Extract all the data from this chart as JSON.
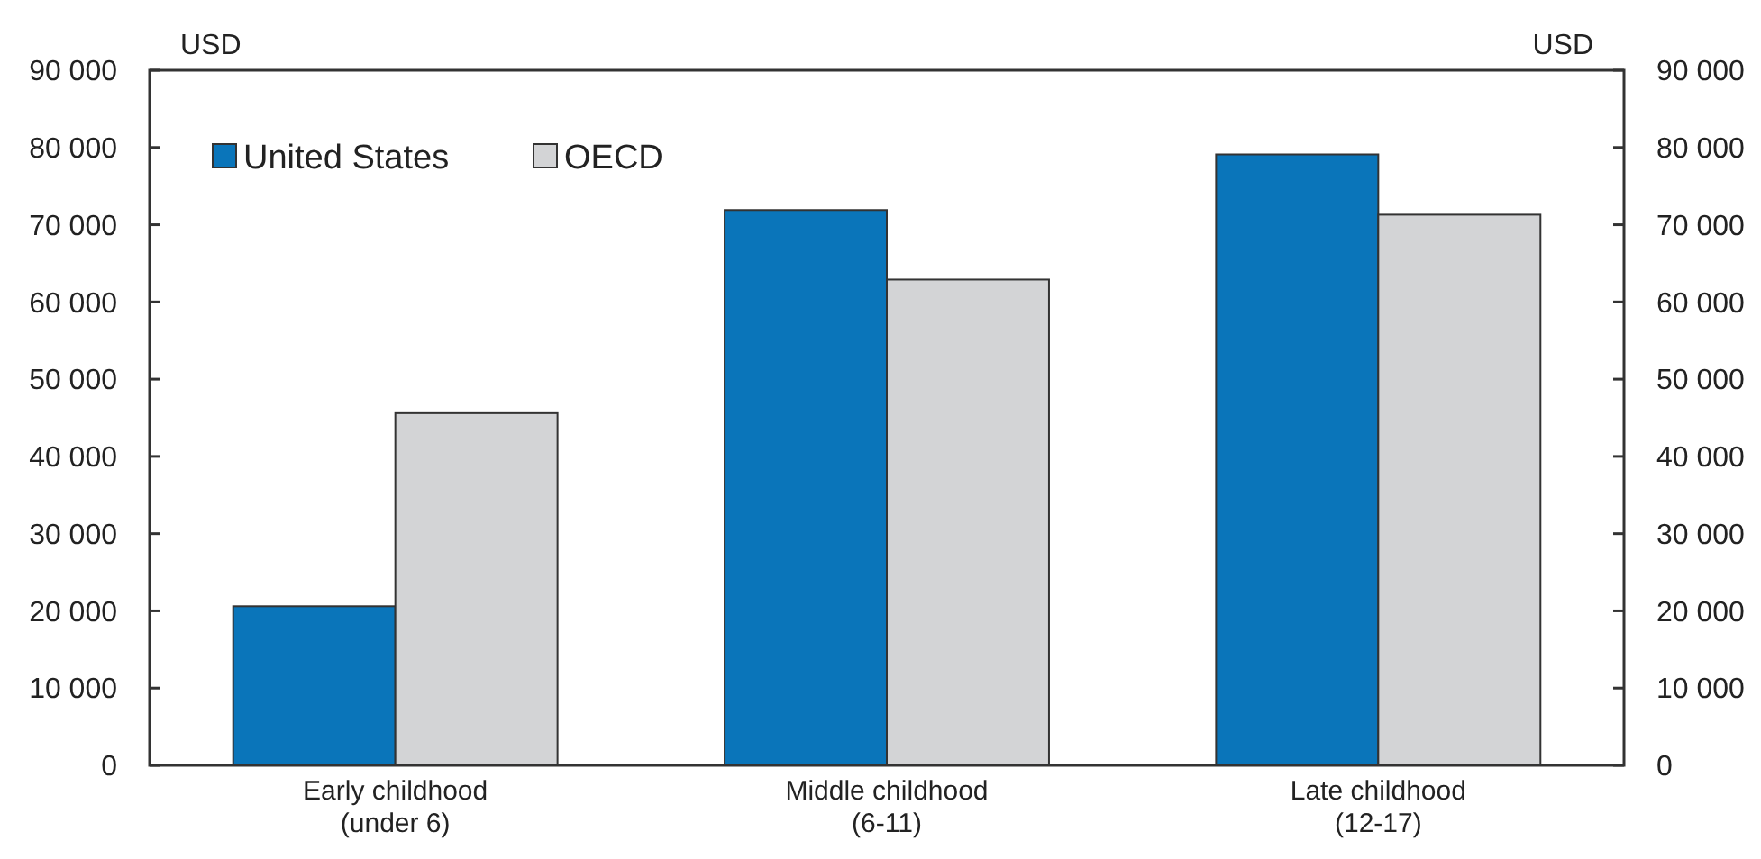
{
  "chart_data": {
    "type": "bar",
    "ylabel": "USD",
    "y2label": "USD",
    "categories": [
      "Early childhood\n(under 6)",
      "Middle childhood\n(6-11)",
      "Late childhood\n(12-17)"
    ],
    "series": [
      {
        "name": "United States",
        "color": "#0a75ba",
        "values": [
          20600,
          71900,
          79100
        ]
      },
      {
        "name": "OECD",
        "color": "#d3d4d6",
        "values": [
          45600,
          62900,
          71300
        ]
      }
    ],
    "ylim": [
      0,
      90000
    ],
    "yticks": [
      0,
      {
        "value": 10000,
        "label": "10 000"
      },
      {
        "value": 20000,
        "label": "20 000"
      },
      {
        "value": 30000,
        "label": "30 000"
      },
      {
        "value": 40000,
        "label": "40 000"
      },
      {
        "value": 50000,
        "label": "50 000"
      },
      {
        "value": 60000,
        "label": "60 000"
      },
      {
        "value": 70000,
        "label": "70 000"
      },
      {
        "value": 80000,
        "label": "80 000"
      },
      {
        "value": 90000,
        "label": "90 000"
      }
    ],
    "y2lim": [
      0,
      90000
    ],
    "y2ticks": [
      0,
      {
        "value": 10000,
        "label": "10 000"
      },
      {
        "value": 20000,
        "label": "20 000"
      },
      {
        "value": 30000,
        "label": "30 000"
      },
      {
        "value": 40000,
        "label": "40 000"
      },
      {
        "value": 50000,
        "label": "50 000"
      },
      {
        "value": 60000,
        "label": "60 000"
      },
      {
        "value": 70000,
        "label": "70 000"
      },
      {
        "value": 80000,
        "label": "80 000"
      },
      {
        "value": 90000,
        "label": "90 000"
      }
    ],
    "legend": "top left",
    "grid": false
  }
}
